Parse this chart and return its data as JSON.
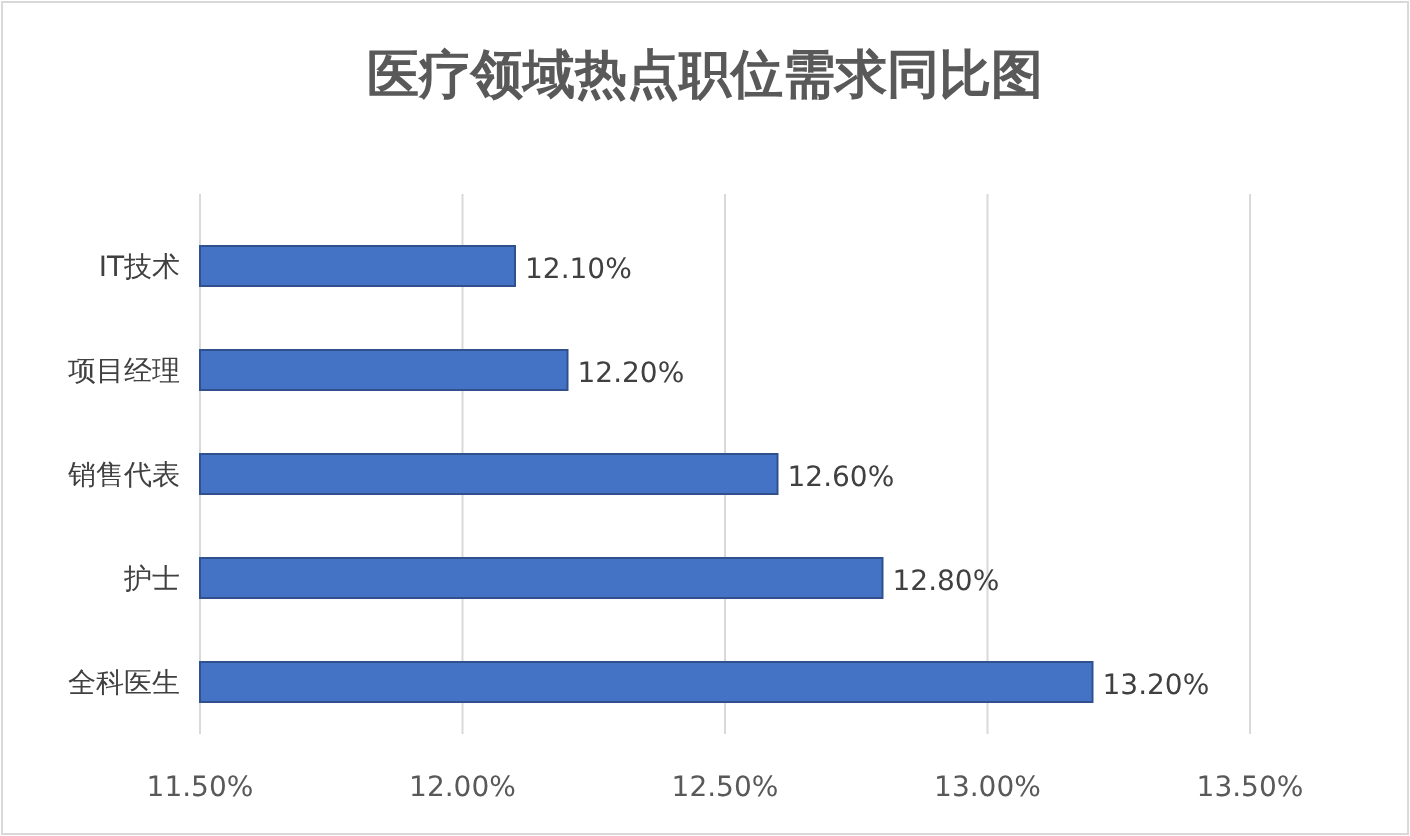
{
  "chart_data": {
    "type": "bar",
    "orientation": "horizontal",
    "title": "医疗领域热点职位需求同比图",
    "categories": [
      "IT技术",
      "项目经理",
      "销售代表",
      "护士",
      "全科医生"
    ],
    "values": [
      12.1,
      12.2,
      12.6,
      12.8,
      13.2
    ],
    "value_labels": [
      "12.10%",
      "12.20%",
      "12.60%",
      "12.80%",
      "13.20%"
    ],
    "color": "#4472c4",
    "xlim": [
      11.5,
      13.5
    ],
    "xticks": [
      {
        "value": 11.5,
        "label": "11.50%"
      },
      {
        "value": 12.0,
        "label": "12.00%"
      },
      {
        "value": 12.5,
        "label": "12.50%"
      },
      {
        "value": 13.0,
        "label": "13.00%"
      },
      {
        "value": 13.5,
        "label": "13.50%"
      }
    ],
    "grid": "x"
  }
}
